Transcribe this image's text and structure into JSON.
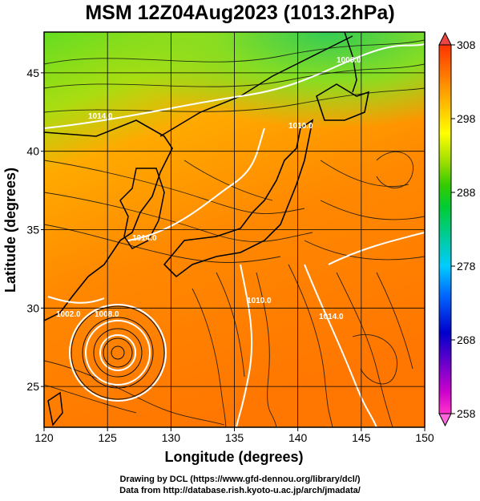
{
  "title": "MSM 12Z04Aug2023 (1013.2hPa)",
  "map": {
    "lon_range": [
      120,
      150
    ],
    "lat_range": [
      22.4,
      47.6
    ],
    "x_ticks": [
      "120",
      "125",
      "130",
      "135",
      "140",
      "145",
      "150"
    ],
    "y_ticks": [
      "25",
      "30",
      "35",
      "40",
      "45"
    ],
    "xlabel": "Longitude (degrees)",
    "ylabel": "Latitude  (degrees)",
    "field": "temperature",
    "overlay": "streamlines",
    "contour_labels": [
      "1006.0",
      "1014.0",
      "1010.0",
      "1014.0",
      "1010.0",
      "1014.0",
      "1002.0",
      "1008.0"
    ],
    "typhoon_center": {
      "lon": 125.9,
      "lat": 27.8
    }
  },
  "colorbar": {
    "ticks": [
      "308",
      "298",
      "288",
      "278",
      "268",
      "258"
    ],
    "min": 258,
    "max": 308,
    "colors": [
      "#ff33cc",
      "#cc00cc",
      "#6600cc",
      "#0000cc",
      "#0066ff",
      "#00ccff",
      "#00cc99",
      "#00cc33",
      "#33cc00",
      "#99dd00",
      "#ffff00",
      "#ffcc00",
      "#ff9900",
      "#ff6600",
      "#ff3300",
      "#ee2222"
    ]
  },
  "footer": {
    "line1": "Drawing by DCL (https://www.gfd-dennou.org/library/dcl/)",
    "line2": "Data from http://database.rish.kyoto-u.ac.jp/arch/jmadata/"
  }
}
